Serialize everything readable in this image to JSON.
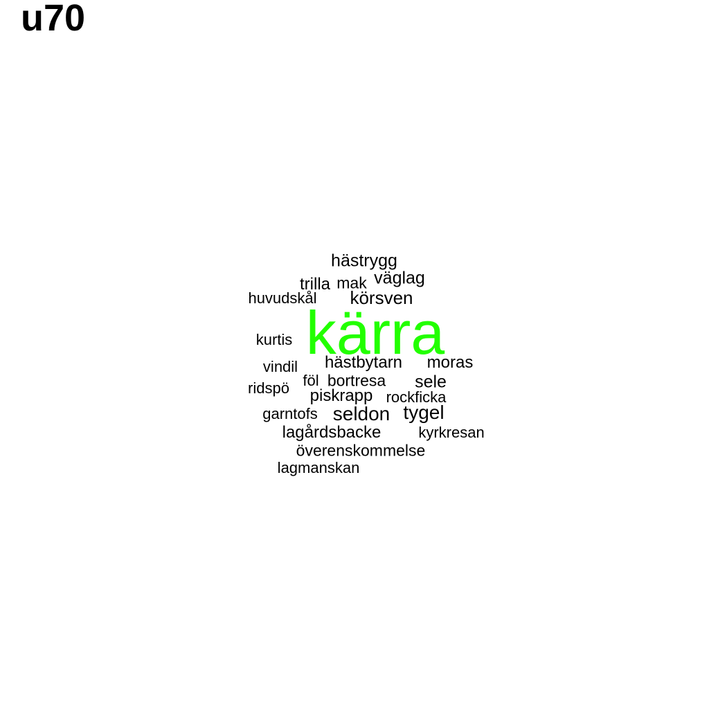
{
  "title": "u70",
  "colors": {
    "highlight": "#22ff00",
    "text": "#000000",
    "background": "#ffffff"
  },
  "words": {
    "karra": "kärra",
    "hastrygg": "hästrygg",
    "vaglag": "väglag",
    "trilla": "trilla",
    "mak": "mak",
    "huvudskal": "huvudskål",
    "korsven": "körsven",
    "kurtis": "kurtis",
    "hastbytarn": "hästbytarn",
    "moras": "moras",
    "vindil": "vindil",
    "fol": "föl",
    "bortresa": "bortresa",
    "sele": "sele",
    "ridspo": "ridspö",
    "piskrapp": "piskrapp",
    "rockficka": "rockficka",
    "garntofs": "garntofs",
    "seldon": "seldon",
    "tygel": "tygel",
    "lagardsbacke": "lagårdsbacke",
    "kyrkresan": "kyrkresan",
    "overenskommelse": "överenskommelse",
    "lagmanskan": "lagmanskan"
  }
}
